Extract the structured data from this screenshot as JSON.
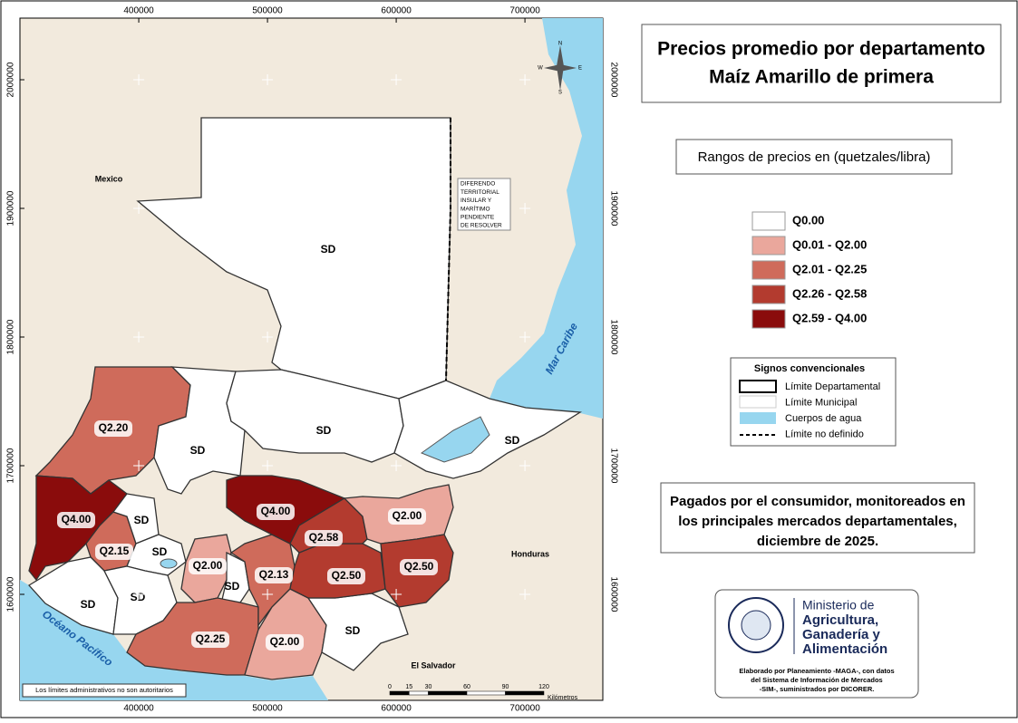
{
  "title": [
    "Precios promedio por departamento",
    "Maíz Amarillo de primera"
  ],
  "legend": {
    "title": "Rangos de precios en (quetzales/libra)",
    "items": [
      {
        "label": "Q0.00",
        "color": "#ffffff"
      },
      {
        "label": "Q0.01 - Q2.00",
        "color": "#eaa79c"
      },
      {
        "label": "Q2.01 - Q2.25",
        "color": "#cf6b5b"
      },
      {
        "label": "Q2.26 - Q2.58",
        "color": "#b33b2f"
      },
      {
        "label": "Q2.59 - Q4.00",
        "color": "#8a0c0c"
      }
    ]
  },
  "signs": {
    "title": "Signos convencionales",
    "items": [
      "Límite Departamental",
      "Límite Municipal",
      "Cuerpos de agua",
      "Límite no definido"
    ]
  },
  "note": [
    "Pagados por el consumidor, monitoreados en",
    "los principales mercados departamentales,",
    "diciembre de 2025."
  ],
  "logo": {
    "ministry": [
      "Ministerio de",
      "Agricultura,",
      "Ganadería y",
      "Alimentación"
    ],
    "credits": [
      "Elaborado por Planeamiento -MAGA-, con datos",
      "del Sistema de Información de Mercados",
      "-SIM-, suministrados por DICORER."
    ]
  },
  "map": {
    "xlim": [
      307700,
      760500
    ],
    "ylim": [
      1517600,
      2047900
    ],
    "xticks": [
      {
        "value": 400000,
        "label": "400000"
      },
      {
        "value": 500000,
        "label": "500000"
      },
      {
        "value": 600000,
        "label": "600000"
      },
      {
        "value": 700000,
        "label": "700000"
      }
    ],
    "yticks": [
      {
        "value": 1600000,
        "label": "1600000"
      },
      {
        "value": 1700000,
        "label": "1700000"
      },
      {
        "value": 1800000,
        "label": "1800000"
      },
      {
        "value": 1900000,
        "label": "1900000"
      },
      {
        "value": 2000000,
        "label": "2000000"
      }
    ],
    "places": [
      "Mexico",
      "Honduras",
      "El Salvador",
      "Mar Caribe",
      "Océano Pacífico"
    ],
    "dispute": [
      "DIFERENDO",
      "TERRITORIAL",
      "INSULAR Y",
      "MARÍTIMO",
      "PENDIENTE",
      "DE RESOLVER"
    ],
    "disclaimer": "Los límites administrativos no son autoritarios",
    "compass": [
      "N",
      "S",
      "E",
      "W"
    ],
    "scale": {
      "ticks": [
        0,
        15,
        30,
        60,
        90,
        120
      ],
      "unit": "Kilómetros"
    },
    "departments": [
      {
        "label": "SD",
        "range": 0
      },
      {
        "label": "Q2.20",
        "range": 2
      },
      {
        "label": "SD",
        "range": 0
      },
      {
        "label": "SD",
        "range": 0
      },
      {
        "label": "SD",
        "range": 0
      },
      {
        "label": "Q4.00",
        "range": 4
      },
      {
        "label": "Q2.15",
        "range": 2
      },
      {
        "label": "SD",
        "range": 0
      },
      {
        "label": "SD",
        "range": 0
      },
      {
        "label": "SD",
        "range": 0
      },
      {
        "label": "SD",
        "range": 0
      },
      {
        "label": "Q2.00",
        "range": 1
      },
      {
        "label": "SD",
        "range": 0
      },
      {
        "label": "Q2.25",
        "range": 2
      },
      {
        "label": "Q2.13",
        "range": 2
      },
      {
        "label": "Q2.00",
        "range": 1
      },
      {
        "label": "SD",
        "range": 0
      },
      {
        "label": "Q2.50",
        "range": 3
      },
      {
        "label": "Q4.00",
        "range": 4
      },
      {
        "label": "Q2.58",
        "range": 3
      },
      {
        "label": "Q2.00",
        "range": 1
      },
      {
        "label": "Q2.50",
        "range": 3
      }
    ]
  }
}
